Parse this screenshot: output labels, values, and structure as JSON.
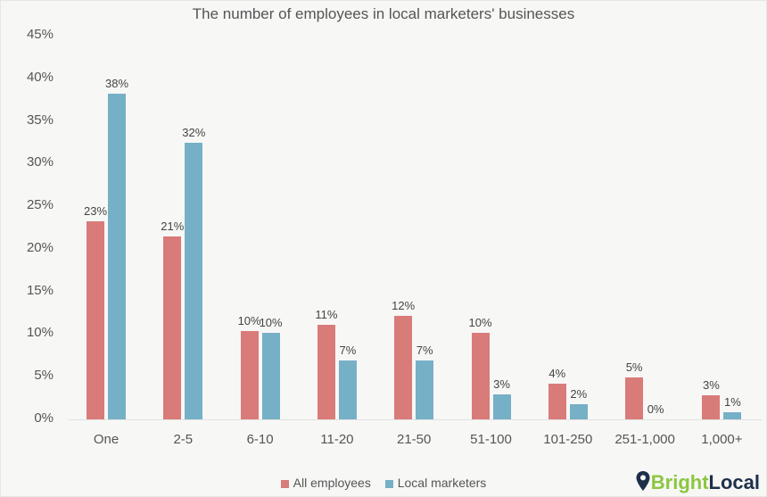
{
  "chart_data": {
    "type": "bar",
    "title": "The number of employees in local marketers' businesses",
    "xlabel": "",
    "ylabel": "",
    "ylim": [
      0,
      45
    ],
    "yticks": [
      "0%",
      "5%",
      "10%",
      "15%",
      "20%",
      "25%",
      "30%",
      "35%",
      "40%",
      "45%"
    ],
    "categories": [
      "One",
      "2-5",
      "6-10",
      "11-20",
      "21-50",
      "51-100",
      "101-250",
      "251-1,000",
      "1,000+"
    ],
    "series": [
      {
        "name": "All employees",
        "color": "#d97b78",
        "values": [
          23,
          21,
          10,
          11,
          12,
          10,
          4,
          5,
          3
        ],
        "labels": [
          "23%",
          "21%",
          "10%",
          "11%",
          "12%",
          "10%",
          "4%",
          "5%",
          "3%"
        ]
      },
      {
        "name": "Local marketers",
        "color": "#76b0c7",
        "values": [
          38,
          32,
          10,
          7,
          7,
          3,
          2,
          0,
          1
        ],
        "labels": [
          "38%",
          "32%",
          "10%",
          "7%",
          "7%",
          "3%",
          "2%",
          "0%",
          "1%"
        ]
      }
    ],
    "bar_heights_pct": [
      [
        23.2,
        21.5,
        10.4,
        11.1,
        12.1,
        10.1,
        4.2,
        4.9,
        2.8
      ],
      [
        38.2,
        32.4,
        10.2,
        6.9,
        6.9,
        2.9,
        1.8,
        0,
        0.8
      ]
    ],
    "grid": false,
    "legend_position": "bottom"
  },
  "brand": {
    "part1": "Bright",
    "part2": "Local"
  }
}
